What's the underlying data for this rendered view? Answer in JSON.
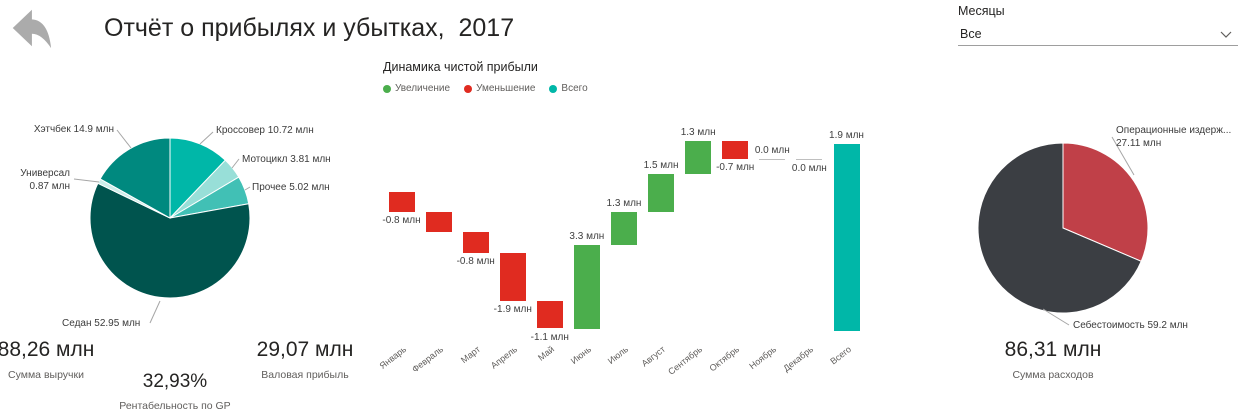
{
  "header": {
    "title": "Отчёт о прибылях и убытках,  2017"
  },
  "slicer": {
    "label": "Месяцы",
    "value": "Все"
  },
  "kpis": [
    {
      "value": "88,26 млн",
      "label": "Сумма выручки"
    },
    {
      "value": "29,07 млн",
      "label": "Валовая прибыль"
    },
    {
      "value": "32,93%",
      "label": "Рентабельность по GP"
    },
    {
      "value": "86,31 млн",
      "label": "Сумма расходов"
    }
  ],
  "chart_data": [
    {
      "id": "revenue_pie",
      "type": "pie",
      "categories": [
        "Кроссовер",
        "Мотоцикл",
        "Прочее",
        "Седан",
        "Универсал",
        "Хэтчбек"
      ],
      "values": [
        10.72,
        3.81,
        5.02,
        52.95,
        0.87,
        14.9
      ],
      "labels": [
        "Кроссовер 10.72 млн",
        "Мотоцикл 3.81 млн",
        "Прочее 5.02 млн",
        "Седан 52.95 млн",
        "Универсал\n0.87 млн",
        "Хэтчбек 14.9 млн"
      ],
      "colors": [
        "#00B7A8",
        "#98DFD8",
        "#41C0B5",
        "#00544E",
        "#CDEEEA",
        "#00897F"
      ],
      "unit": "млн",
      "total": 88.27,
      "legend_position": "none"
    },
    {
      "id": "net_profit_waterfall",
      "type": "waterfall",
      "title": "Динамика чистой прибыли",
      "legend": [
        {
          "label": "Увеличение",
          "color": "#4BAE4C"
        },
        {
          "label": "Уменьшение",
          "color": "#E02B20"
        },
        {
          "label": "Всего",
          "color": "#00B7A8"
        }
      ],
      "categories": [
        "Январь",
        "Февраль",
        "Март",
        "Апрель",
        "Май",
        "Июнь",
        "Июль",
        "Август",
        "Сентябрь",
        "Октябрь",
        "Ноябрь",
        "Декабрь",
        "Всего"
      ],
      "values": [
        -0.8,
        -0.8,
        -0.8,
        -1.9,
        -1.1,
        3.3,
        1.3,
        1.5,
        1.3,
        -0.7,
        0.0,
        0.0,
        1.9
      ],
      "bar_labels": [
        "-0.8 млн",
        "",
        "-0.8 млн",
        "-1.9 млн",
        "-1.1 млн",
        "3.3 млн",
        "1.3 млн",
        "1.5 млн",
        "1.3 млн",
        "-0.7 млн",
        "0.0 млн",
        "0.0 млн",
        "1.9 млн"
      ],
      "label_side": [
        "below",
        "none",
        "below",
        "below",
        "below",
        "above",
        "above",
        "above",
        "above",
        "below",
        "above",
        "below",
        "above"
      ],
      "is_total": [
        false,
        false,
        false,
        false,
        false,
        false,
        false,
        false,
        false,
        false,
        false,
        false,
        true
      ],
      "colors": {
        "increase": "#4BAE4C",
        "decrease": "#E02B20",
        "total": "#00B7A8",
        "zero": "#bfbfbf"
      },
      "ylim": [
        -5.5,
        3.0
      ],
      "unit": "млн",
      "legend_position": "top"
    },
    {
      "id": "expenses_pie",
      "type": "pie",
      "categories": [
        "Операционные издержки",
        "Себестоимость"
      ],
      "values": [
        27.11,
        59.2
      ],
      "labels": [
        "Операционные издерж...\n27.11 млн",
        "Себестоимость 59.2 млн"
      ],
      "colors": [
        "#C04048",
        "#3B3E43"
      ],
      "unit": "млн",
      "total": 86.31,
      "legend_position": "none"
    }
  ]
}
